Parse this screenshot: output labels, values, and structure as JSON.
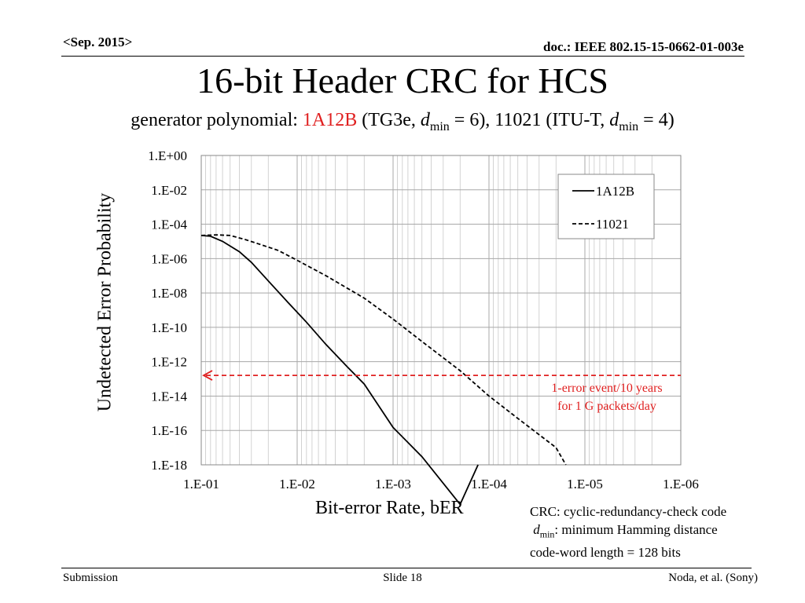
{
  "header": {
    "date": "<Sep. 2015>",
    "doc": "doc.: IEEE 802.15-15-0662-01-003e"
  },
  "slide": {
    "title": "16-bit Header CRC for HCS",
    "subtitle": {
      "prefix": "generator polynomial: ",
      "poly1": "1A12B",
      "part2": " (TG3e, ",
      "d1": "d",
      "min1": "min",
      "part3": " = 6), 11021 (ITU-T, ",
      "d2": "d",
      "min2": "min",
      "part4": " = 4)"
    }
  },
  "notes": {
    "line1": "CRC: cyclic-redundancy-check code",
    "line2_d": "d",
    "line2_min": "min",
    "line2_rest": ": minimum Hamming distance",
    "line3": "code-word length = 128 bits"
  },
  "footer": {
    "left": "Submission",
    "center": "Slide 18",
    "right": "Noda, et al. (Sony)"
  },
  "colors": {
    "accent": "#e02020",
    "grid": "#c8c8c8",
    "line": "#000000"
  },
  "chart_data": {
    "type": "line",
    "title": "",
    "xlabel": "Bit-error Rate, bER",
    "ylabel": "Undetected Error Probability",
    "xscale": "log",
    "yscale": "log",
    "x_reversed": true,
    "xlim": [
      0.1,
      1e-06
    ],
    "ylim": [
      1e-18,
      1
    ],
    "x_ticks": [
      0.1,
      0.01,
      0.001,
      0.0001,
      1e-05,
      1e-06
    ],
    "x_tick_labels": [
      "1.E-01",
      "1.E-02",
      "1.E-03",
      "1.E-04",
      "1.E-05",
      "1.E-06"
    ],
    "y_ticks": [
      1,
      0.01,
      0.0001,
      1e-06,
      1e-08,
      1e-10,
      1e-12,
      1e-14,
      1e-16,
      1e-18
    ],
    "y_tick_labels": [
      "1.E+00",
      "1.E-02",
      "1.E-04",
      "1.E-06",
      "1.E-08",
      "1.E-10",
      "1.E-12",
      "1.E-14",
      "1.E-16",
      "1.E-18"
    ],
    "grid": true,
    "legend": "top-right",
    "series": [
      {
        "name": "1A12B",
        "style": "solid",
        "x": [
          0.1,
          0.08,
          0.06,
          0.04,
          0.03,
          0.02,
          0.0126,
          0.008,
          0.005,
          0.003,
          0.002,
          0.001,
          0.0005,
          0.0002,
          0.00013
        ],
        "y": [
          2.2e-05,
          2e-05,
          1e-05,
          2.5e-06,
          6e-07,
          5e-08,
          3e-09,
          2e-10,
          1e-11,
          5e-13,
          5e-14,
          1.5e-16,
          3e-18,
          5e-21,
          1e-18
        ]
      },
      {
        "name": "11021",
        "style": "dashed",
        "x": [
          0.1,
          0.07,
          0.05,
          0.035,
          0.025,
          0.0158,
          0.01,
          0.005,
          0.002,
          0.001,
          0.0005,
          0.0002,
          0.0001,
          5e-05,
          2e-05,
          1.58e-05
        ],
        "y": [
          2.2e-05,
          2.4e-05,
          2.2e-05,
          1.3e-05,
          7e-06,
          3e-06,
          8e-07,
          1e-07,
          5e-09,
          3e-10,
          1.5e-11,
          3e-13,
          1e-14,
          5e-16,
          1e-17,
          1e-18
        ]
      }
    ],
    "reference_line": {
      "y": 1.6e-13,
      "label_line1": "1-error event/10 years",
      "label_line2": "for 1 G packets/day"
    }
  }
}
